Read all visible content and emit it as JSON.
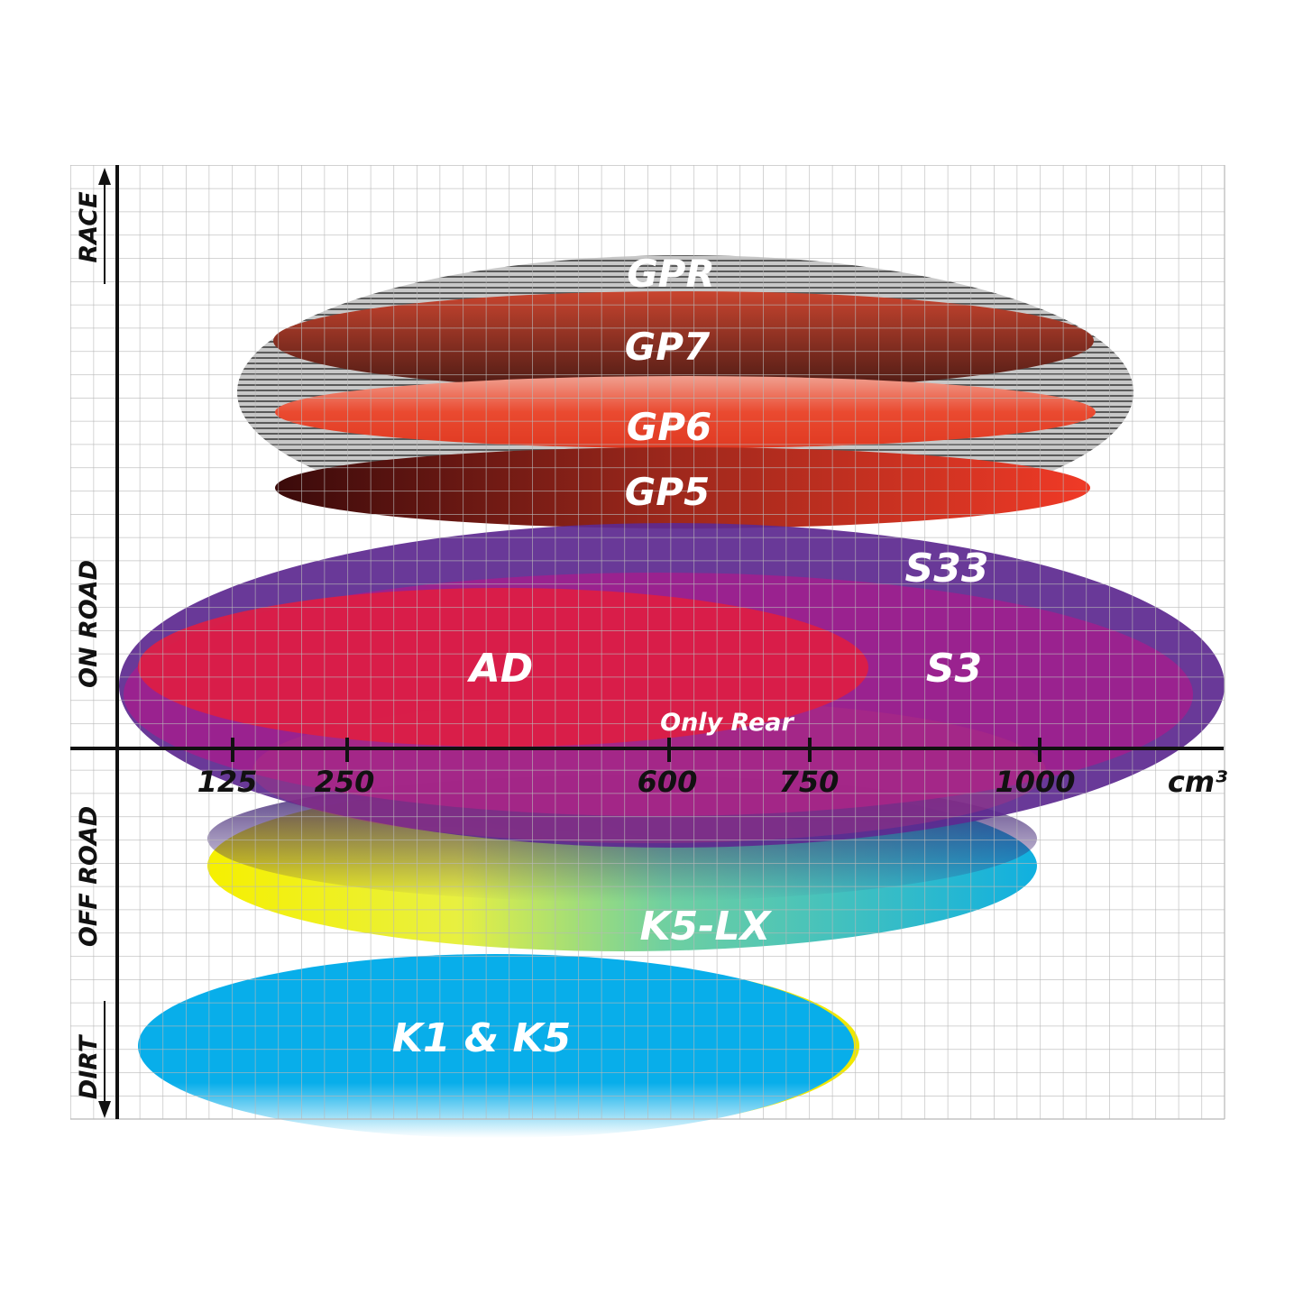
{
  "chart_data": {
    "type": "diagram-ellipses",
    "x_axis": {
      "unit": "cm³",
      "ticks": [
        "125",
        "250",
        "600",
        "750",
        "1000"
      ]
    },
    "y_axis": {
      "labels": [
        "RACE",
        "ON ROAD",
        "OFF ROAD",
        "DIRT"
      ]
    },
    "grid": true,
    "products": [
      {
        "name": "GPR",
        "color": "#9a9a9a"
      },
      {
        "name": "GP7",
        "color": "#8a2a1a"
      },
      {
        "name": "GP6",
        "color": "#e8432e"
      },
      {
        "name": "GP5",
        "color": "#c02818"
      },
      {
        "name": "S33",
        "color": "#5e2a90"
      },
      {
        "name": "S3",
        "color": "#a0208e"
      },
      {
        "name": "AD",
        "color": "#dc1e46"
      },
      {
        "name": "Only Rear",
        "color": "#b02a7a"
      },
      {
        "name": "K5-LX",
        "color": "#2ab8c8"
      },
      {
        "name": "K1 & K5",
        "color": "#08aeea"
      }
    ]
  }
}
